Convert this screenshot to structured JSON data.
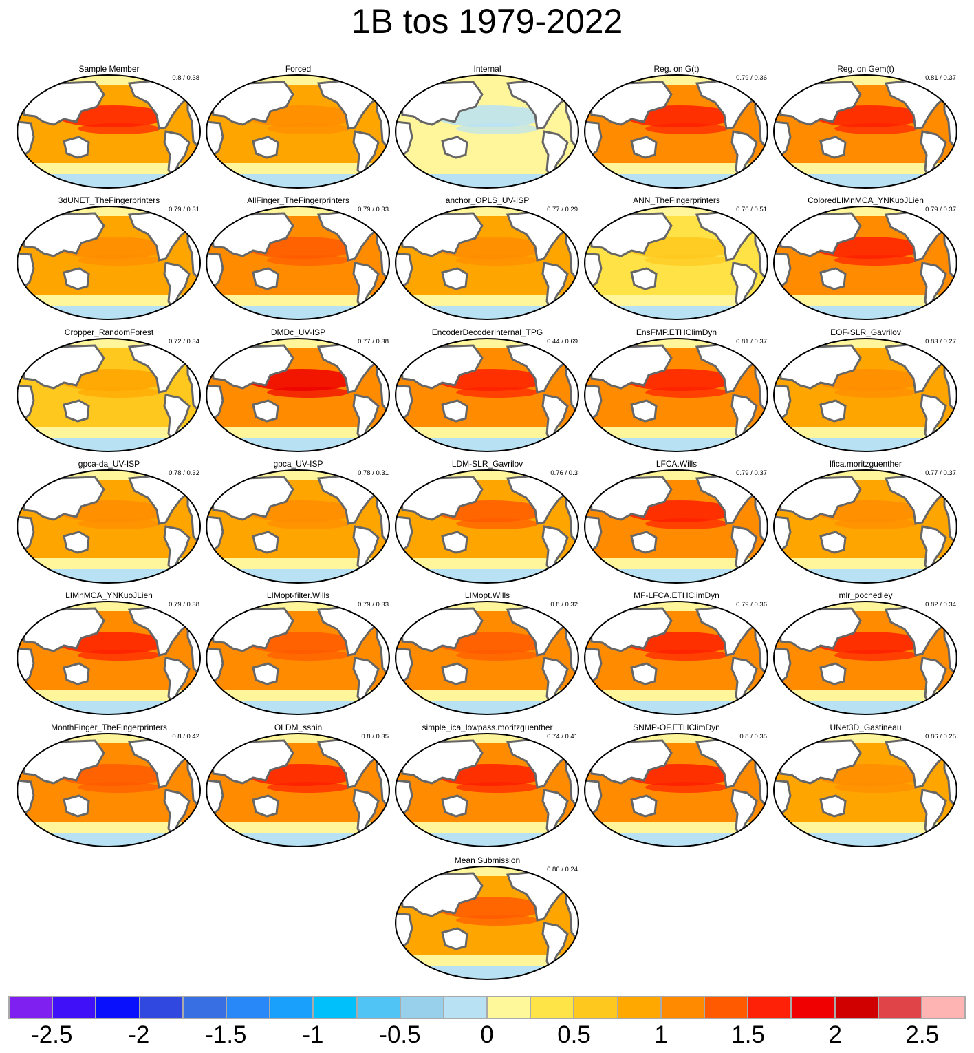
{
  "title": "1B tos 1979-2022",
  "panels": [
    {
      "name": "Sample Member",
      "score": "0.8 / 0.38",
      "base": "#ffa500",
      "hot": "#ff2000"
    },
    {
      "name": "Forced",
      "score": "",
      "base": "#ffa500",
      "hot": "#ff8c00"
    },
    {
      "name": "Internal",
      "score": "",
      "base": "#fff59a",
      "hot": "#b9e2f5"
    },
    {
      "name": "Reg. on G(t)",
      "score": "0.79 / 0.36",
      "base": "#ff8c00",
      "hot": "#ff2000"
    },
    {
      "name": "Reg. on Gem(t)",
      "score": "0.81 / 0.37",
      "base": "#ff8c00",
      "hot": "#ff2000"
    },
    {
      "name": "3dUNET_TheFingerprinters",
      "score": "0.79 / 0.31",
      "base": "#ffa500",
      "hot": "#ff8c00"
    },
    {
      "name": "AllFinger_TheFingerprinters",
      "score": "0.79 / 0.33",
      "base": "#ff8c00",
      "hot": "#ff5a00"
    },
    {
      "name": "anchor_OPLS_UV-ISP",
      "score": "0.77 / 0.29",
      "base": "#ffa500",
      "hot": "#ff8c00"
    },
    {
      "name": "ANN_TheFingerprinters",
      "score": "0.76 / 0.51",
      "base": "#ffe246",
      "hot": "#ffc81e"
    },
    {
      "name": "ColoredLIMnMCA_YNKuoJLien",
      "score": "0.79 / 0.37",
      "base": "#ff8c00",
      "hot": "#ff2000"
    },
    {
      "name": "Cropper_RandomForest",
      "score": "0.72 / 0.34",
      "base": "#ffc81e",
      "hot": "#ffa500"
    },
    {
      "name": "DMDc_UV-ISP",
      "score": "0.77 / 0.38",
      "base": "#ff8c00",
      "hot": "#f00000"
    },
    {
      "name": "EncoderDecoderInternal_TPG",
      "score": "0.44 / 0.69",
      "base": "#ff8c00",
      "hot": "#ff2000"
    },
    {
      "name": "EnsFMP.ETHClimDyn",
      "score": "0.81 / 0.37",
      "base": "#ff8c00",
      "hot": "#ff2000"
    },
    {
      "name": "EOF-SLR_Gavrilov",
      "score": "0.83 / 0.27",
      "base": "#ffa500",
      "hot": "#ff8c00"
    },
    {
      "name": "gpca-da_UV-ISP",
      "score": "0.78 / 0.32",
      "base": "#ffa500",
      "hot": "#ff8c00"
    },
    {
      "name": "gpca_UV-ISP",
      "score": "0.78 / 0.31",
      "base": "#ffa500",
      "hot": "#ff8c00"
    },
    {
      "name": "LDM-SLR_Gavrilov",
      "score": "0.76 / 0.3",
      "base": "#ffa500",
      "hot": "#ff5a00"
    },
    {
      "name": "LFCA.Wills",
      "score": "0.79 / 0.37",
      "base": "#ff8c00",
      "hot": "#ff2000"
    },
    {
      "name": "lfica.moritzguenther",
      "score": "0.77 / 0.37",
      "base": "#ffa500",
      "hot": "#ff8c00"
    },
    {
      "name": "LIMnMCA_YNKuoJLien",
      "score": "0.79 / 0.38",
      "base": "#ff8c00",
      "hot": "#ff2000"
    },
    {
      "name": "LIMopt-filter.Wills",
      "score": "0.79 / 0.33",
      "base": "#ff8c00",
      "hot": "#ff5a00"
    },
    {
      "name": "LIMopt.Wills",
      "score": "0.8 / 0.32",
      "base": "#ff8c00",
      "hot": "#ff5a00"
    },
    {
      "name": "MF-LFCA.ETHClimDyn",
      "score": "0.79 / 0.36",
      "base": "#ff8c00",
      "hot": "#ff2000"
    },
    {
      "name": "mlr_pochedley",
      "score": "0.82 / 0.34",
      "base": "#ff8c00",
      "hot": "#ff2000"
    },
    {
      "name": "MonthFinger_TheFingerprinters",
      "score": "0.8 / 0.42",
      "base": "#ff8c00",
      "hot": "#ff5a00"
    },
    {
      "name": "OLDM_sshin",
      "score": "0.8 / 0.35",
      "base": "#ff8c00",
      "hot": "#ff2000"
    },
    {
      "name": "simple_ica_lowpass.moritzguenther",
      "score": "0.74 / 0.41",
      "base": "#ff8c00",
      "hot": "#ff2000"
    },
    {
      "name": "SNMP-OF.ETHClimDyn",
      "score": "0.8 / 0.35",
      "base": "#ff8c00",
      "hot": "#ff2000"
    },
    {
      "name": "UNet3D_Gastineau",
      "score": "0.86 / 0.25",
      "base": "#ffa500",
      "hot": "#ff8c00"
    },
    {
      "name": "Mean Submission",
      "score": "0.86 / 0.24",
      "base": "#ffa500",
      "hot": "#ff5a00"
    }
  ],
  "chart_data": {
    "type": "map-grid",
    "title": "1B tos 1979-2022",
    "colorbar": {
      "colors": [
        "#8020f0",
        "#4010f8",
        "#0810fc",
        "#3048e0",
        "#3870e4",
        "#2888f8",
        "#18a0fc",
        "#00c0fc",
        "#50c4f4",
        "#98d0ec",
        "#b8e2f4",
        "#fff89a",
        "#ffe448",
        "#ffc81e",
        "#ffa800",
        "#ff8a00",
        "#ff5a00",
        "#ff2008",
        "#f00000",
        "#d00000",
        "#e04448",
        "#ffb4b4"
      ],
      "ticks": [
        "-2.5",
        "-2",
        "-1.5",
        "-1",
        "-0.5",
        "0",
        "0.5",
        "1",
        "1.5",
        "2",
        "2.5"
      ],
      "tick_values": [
        -2.5,
        -2,
        -1.5,
        -1,
        -0.5,
        0,
        0.5,
        1,
        1.5,
        2,
        2.5
      ],
      "range": [
        -2.75,
        2.75
      ]
    }
  }
}
